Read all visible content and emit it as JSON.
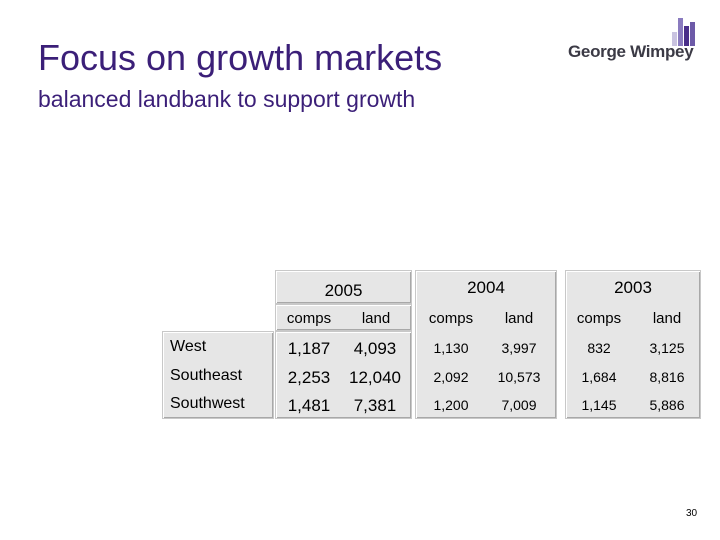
{
  "slide": {
    "title": "Focus on growth markets",
    "subtitle": "balanced landbank to support growth",
    "page_number": "30"
  },
  "logo": {
    "text": "George Wimpey",
    "bar_colors": [
      "#c9c3e0",
      "#8a7bbf",
      "#4a2f8a",
      "#6d5aa8"
    ]
  },
  "table": {
    "years": [
      "2005",
      "2004",
      "2003"
    ],
    "columns": [
      "comps",
      "land"
    ],
    "rows": [
      {
        "region": "West",
        "y2005": [
          "1,187",
          "4,093"
        ],
        "y2004": [
          "1,130",
          "3,997"
        ],
        "y2003": [
          "832",
          "3,125"
        ]
      },
      {
        "region": "Southeast",
        "y2005": [
          "2,253",
          "12,040"
        ],
        "y2004": [
          "2,092",
          "10,573"
        ],
        "y2003": [
          "1,684",
          "8,816"
        ]
      },
      {
        "region": "Southwest",
        "y2005": [
          "1,481",
          "7,381"
        ],
        "y2004": [
          "1,200",
          "7,009"
        ],
        "y2003": [
          "1,145",
          "5,886"
        ]
      }
    ]
  }
}
